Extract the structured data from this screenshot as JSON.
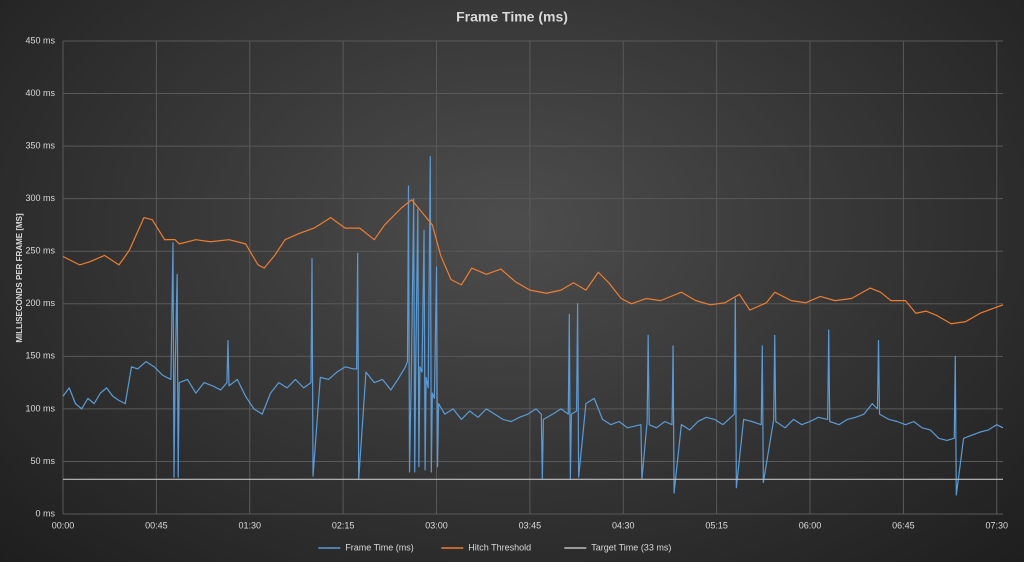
{
  "chart_data": {
    "type": "line",
    "title": "Frame Time (ms)",
    "y_label": "MILLISECONDS PER FRAME [MS]",
    "xlim": [
      0,
      453
    ],
    "ylim": [
      0,
      450
    ],
    "grid": true,
    "legend": "bottom",
    "xticks": [
      {
        "value": 0,
        "label": "00:00"
      },
      {
        "value": 45,
        "label": "00:45"
      },
      {
        "value": 90,
        "label": "01:30"
      },
      {
        "value": 135,
        "label": "02:15"
      },
      {
        "value": 180,
        "label": "03:00"
      },
      {
        "value": 225,
        "label": "03:45"
      },
      {
        "value": 270,
        "label": "04:30"
      },
      {
        "value": 315,
        "label": "05:15"
      },
      {
        "value": 360,
        "label": "06:00"
      },
      {
        "value": 405,
        "label": "06:45"
      },
      {
        "value": 450,
        "label": "07:30"
      }
    ],
    "yticks": [
      {
        "value": 0,
        "label": "0 ms"
      },
      {
        "value": 50,
        "label": "50 ms"
      },
      {
        "value": 100,
        "label": "100 ms"
      },
      {
        "value": 150,
        "label": "150 ms"
      },
      {
        "value": 200,
        "label": "200 ms"
      },
      {
        "value": 250,
        "label": "250 ms"
      },
      {
        "value": 300,
        "label": "300 ms"
      },
      {
        "value": 350,
        "label": "350 ms"
      },
      {
        "value": 400,
        "label": "400 ms"
      },
      {
        "value": 450,
        "label": "450 ms"
      }
    ],
    "series": [
      {
        "name": "Frame Time (ms)",
        "color": "#5b9bd5",
        "x": [
          0,
          3,
          6,
          9,
          12,
          15,
          18,
          21,
          24,
          27,
          30,
          33,
          36,
          40,
          44,
          48,
          52,
          53,
          53.5,
          54,
          55,
          55.5,
          56,
          60,
          64,
          68,
          72,
          76,
          79,
          79.5,
          80,
          84,
          88,
          92,
          96,
          100,
          104,
          108,
          112,
          116,
          119.5,
          120,
          120.5,
          124,
          128,
          132,
          136,
          140,
          141.5,
          142,
          142.5,
          146,
          150,
          154,
          158,
          162,
          165,
          166,
          166.5,
          167,
          168,
          169,
          169.5,
          170,
          171,
          171.5,
          172,
          173,
          174,
          174.5,
          175,
          176,
          177,
          177.5,
          178,
          179,
          180,
          180.5,
          181,
          184,
          188,
          192,
          196,
          200,
          204,
          208,
          212,
          216,
          220,
          224,
          228,
          230.5,
          231,
          231.5,
          236,
          240,
          243.5,
          244,
          244.5,
          245,
          247.5,
          248,
          248.5,
          252,
          256,
          260,
          264,
          268,
          272,
          278.5,
          279,
          281.5,
          282,
          282.5,
          286,
          290,
          293.5,
          294,
          294.5,
          298,
          302,
          306,
          310,
          314,
          318,
          323.5,
          324,
          324.5,
          328,
          332,
          336.5,
          337,
          337.5,
          342.5,
          343,
          343.5,
          348,
          352,
          356,
          360,
          364,
          368.5,
          369,
          369.5,
          374,
          378,
          382,
          386,
          390,
          392.5,
          393,
          393.5,
          398,
          402,
          406,
          410,
          414,
          418,
          422,
          426,
          429.5,
          430,
          430.5,
          434,
          438,
          442,
          446,
          450,
          453
        ],
        "values": [
          112,
          120,
          105,
          100,
          110,
          105,
          115,
          120,
          112,
          108,
          105,
          140,
          138,
          145,
          140,
          132,
          128,
          258,
          35,
          130,
          228,
          35,
          125,
          128,
          115,
          125,
          122,
          118,
          125,
          165,
          122,
          128,
          112,
          100,
          95,
          115,
          125,
          120,
          128,
          120,
          125,
          243,
          36,
          130,
          128,
          135,
          140,
          138,
          138,
          248,
          33,
          135,
          125,
          128,
          118,
          130,
          140,
          145,
          312,
          40,
          150,
          300,
          40,
          145,
          290,
          45,
          140,
          135,
          270,
          42,
          130,
          120,
          340,
          40,
          115,
          110,
          235,
          45,
          105,
          95,
          100,
          90,
          98,
          92,
          100,
          95,
          90,
          88,
          92,
          95,
          100,
          95,
          33,
          90,
          95,
          100,
          95,
          190,
          33,
          95,
          98,
          200,
          35,
          105,
          110,
          90,
          85,
          88,
          82,
          85,
          33,
          88,
          170,
          85,
          82,
          88,
          85,
          160,
          20,
          85,
          80,
          88,
          92,
          90,
          85,
          95,
          205,
          25,
          90,
          88,
          85,
          160,
          30,
          90,
          170,
          88,
          82,
          90,
          85,
          88,
          92,
          90,
          175,
          88,
          85,
          90,
          92,
          95,
          105,
          100,
          165,
          95,
          90,
          88,
          85,
          88,
          82,
          80,
          72,
          70,
          72,
          150,
          18,
          72,
          75,
          78,
          80,
          85,
          82
        ]
      },
      {
        "name": "Hitch Threshold",
        "color": "#ed7d31",
        "x": [
          0,
          8,
          13,
          20,
          27,
          32,
          39,
          43,
          49,
          54,
          56,
          64,
          71,
          80,
          88,
          94,
          97,
          102,
          107,
          114,
          121,
          129,
          136,
          143,
          150,
          155,
          163,
          168,
          173,
          178,
          182,
          187,
          192,
          197,
          204,
          211,
          218,
          225,
          233,
          240,
          246,
          252,
          258,
          263,
          269,
          274,
          281,
          288,
          298,
          305,
          312,
          319,
          326,
          331,
          339,
          343,
          351,
          358,
          365,
          372,
          380,
          389,
          394,
          399,
          406,
          411,
          416,
          421,
          428,
          435,
          442,
          453
        ],
        "values": [
          245,
          237,
          240,
          246,
          237,
          251,
          282,
          280,
          261,
          261,
          257,
          261,
          259,
          261,
          257,
          237,
          234,
          246,
          261,
          267,
          272,
          282,
          272,
          272,
          261,
          275,
          291,
          299,
          287,
          275,
          246,
          223,
          218,
          234,
          228,
          233,
          221,
          213,
          210,
          213,
          220,
          213,
          230,
          220,
          205,
          200,
          205,
          203,
          211,
          203,
          199,
          201,
          209,
          194,
          201,
          211,
          203,
          201,
          207,
          203,
          205,
          215,
          211,
          203,
          203,
          191,
          193,
          189,
          181,
          183,
          191,
          199
        ]
      },
      {
        "name": "Target Time (33 ms)",
        "color": "#bfbfbf",
        "x": [
          0,
          453
        ],
        "values": [
          33,
          33
        ]
      }
    ]
  }
}
